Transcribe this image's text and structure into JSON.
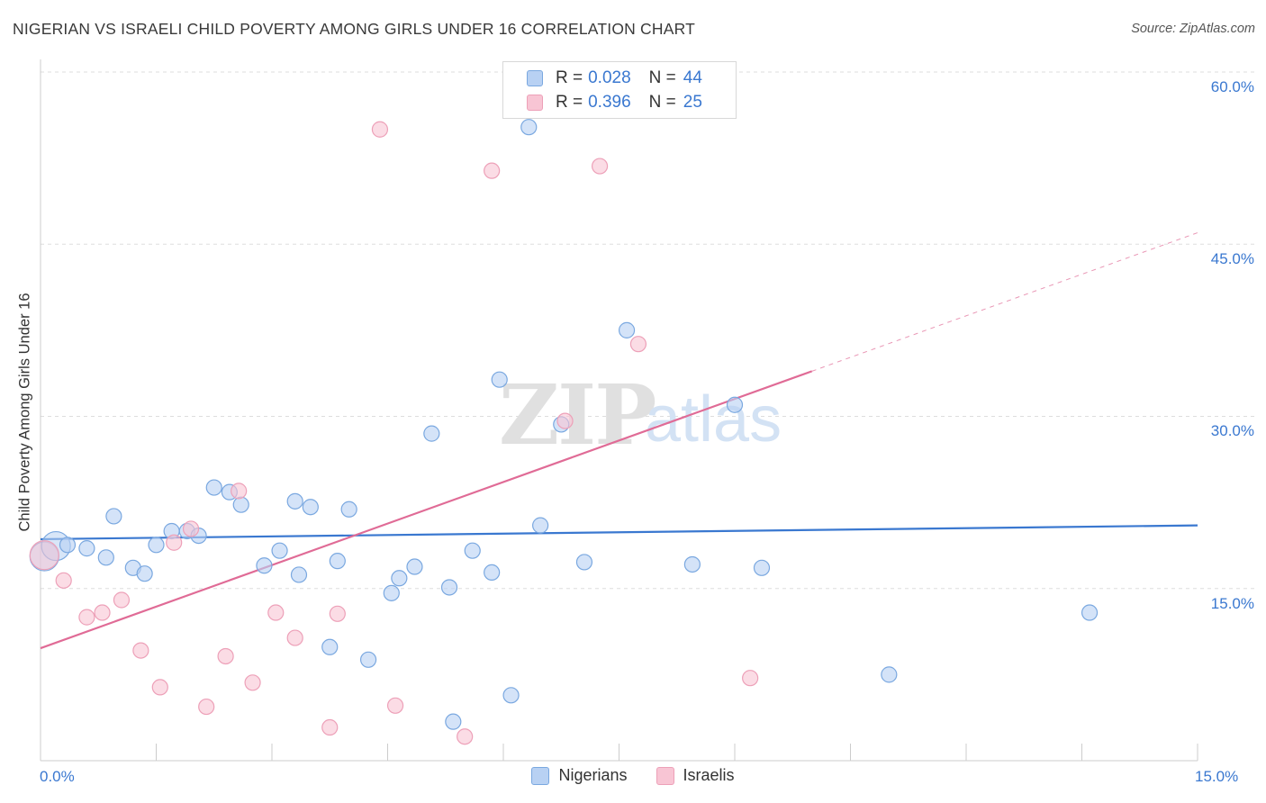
{
  "title": "NIGERIAN VS ISRAELI CHILD POVERTY AMONG GIRLS UNDER 16 CORRELATION CHART",
  "source": "Source: ZipAtlas.com",
  "watermark": {
    "zip": "ZIP",
    "atlas": "atlas"
  },
  "legend_top": [
    {
      "r_label": "R = ",
      "r_value": "0.028",
      "n_label": "N = ",
      "n_value": "44"
    },
    {
      "r_label": "R = ",
      "r_value": "0.396",
      "n_label": "N = ",
      "n_value": "25"
    }
  ],
  "legend_bottom": [
    "Nigerians",
    "Israelis"
  ],
  "colors": {
    "nigerians_fill": "#b8d1f3",
    "nigerians_stroke": "#7aa8e0",
    "nigerians_line": "#3a78d0",
    "israelis_fill": "#f8c5d4",
    "israelis_stroke": "#eda0b8",
    "israelis_line": "#e06b96",
    "axis_text": "#3a78d0",
    "grid": "#dddddd"
  },
  "chart_data": {
    "type": "scatter",
    "title": "NIGERIAN VS ISRAELI CHILD POVERTY AMONG GIRLS UNDER 16 CORRELATION CHART",
    "xlabel": "",
    "ylabel": "Child Poverty Among Girls Under 16",
    "xlim": [
      0,
      15
    ],
    "ylim": [
      0,
      60
    ],
    "x_tick_labels": [
      "0.0%",
      "15.0%"
    ],
    "y_tick_labels": [
      "15.0%",
      "30.0%",
      "45.0%",
      "60.0%"
    ],
    "y_ticks": [
      15,
      30,
      45,
      60
    ],
    "grid": true,
    "legend_position": "top-center",
    "series": [
      {
        "name": "Nigerians",
        "r": 0.028,
        "n": 44,
        "trend": {
          "x0": 0,
          "y0": 19.3,
          "x1": 15,
          "y1": 20.5,
          "solid_until": 15
        },
        "points": [
          [
            0.05,
            17.8,
            "large"
          ],
          [
            0.2,
            18.7,
            "large"
          ],
          [
            0.35,
            18.8
          ],
          [
            0.6,
            18.5
          ],
          [
            0.85,
            17.7
          ],
          [
            0.95,
            21.3
          ],
          [
            1.2,
            16.8
          ],
          [
            1.35,
            16.3
          ],
          [
            1.5,
            18.8
          ],
          [
            1.7,
            20.0
          ],
          [
            1.9,
            20.0
          ],
          [
            2.05,
            19.6
          ],
          [
            2.25,
            23.8
          ],
          [
            2.45,
            23.4
          ],
          [
            2.6,
            22.3
          ],
          [
            2.9,
            17.0
          ],
          [
            3.1,
            18.3
          ],
          [
            3.3,
            22.6
          ],
          [
            3.35,
            16.2
          ],
          [
            3.5,
            22.1
          ],
          [
            3.75,
            9.9
          ],
          [
            3.85,
            17.4
          ],
          [
            4.0,
            21.9
          ],
          [
            4.25,
            8.8
          ],
          [
            4.55,
            14.6
          ],
          [
            4.65,
            15.9
          ],
          [
            4.85,
            16.9
          ],
          [
            5.07,
            28.5
          ],
          [
            5.3,
            15.1
          ],
          [
            5.35,
            3.4
          ],
          [
            5.6,
            18.3
          ],
          [
            5.85,
            16.4
          ],
          [
            5.95,
            33.2
          ],
          [
            6.1,
            5.7
          ],
          [
            6.33,
            55.2
          ],
          [
            6.48,
            20.5
          ],
          [
            6.75,
            29.3
          ],
          [
            7.05,
            17.3
          ],
          [
            7.6,
            37.5
          ],
          [
            8.45,
            17.1
          ],
          [
            9.0,
            31.0
          ],
          [
            9.35,
            16.8
          ],
          [
            11.0,
            7.5
          ],
          [
            13.6,
            12.9
          ]
        ]
      },
      {
        "name": "Israelis",
        "r": 0.396,
        "n": 25,
        "trend": {
          "x0": 0,
          "y0": 9.8,
          "x1": 15,
          "y1": 46.0,
          "solid_until": 10.0
        },
        "points": [
          [
            0.05,
            17.9,
            "large"
          ],
          [
            0.3,
            15.7
          ],
          [
            0.6,
            12.5
          ],
          [
            0.8,
            12.9
          ],
          [
            1.05,
            14.0
          ],
          [
            1.3,
            9.6
          ],
          [
            1.55,
            6.4
          ],
          [
            1.73,
            19.0
          ],
          [
            1.95,
            20.2
          ],
          [
            2.15,
            4.7
          ],
          [
            2.4,
            9.1
          ],
          [
            2.57,
            23.5
          ],
          [
            2.75,
            6.8
          ],
          [
            3.05,
            12.9
          ],
          [
            3.3,
            10.7
          ],
          [
            3.75,
            2.9
          ],
          [
            3.85,
            12.8
          ],
          [
            4.4,
            55.0
          ],
          [
            4.6,
            4.8
          ],
          [
            5.5,
            2.1
          ],
          [
            5.85,
            51.4
          ],
          [
            6.8,
            29.6
          ],
          [
            7.25,
            51.8
          ],
          [
            7.75,
            36.3
          ],
          [
            9.2,
            7.2
          ]
        ]
      }
    ]
  }
}
